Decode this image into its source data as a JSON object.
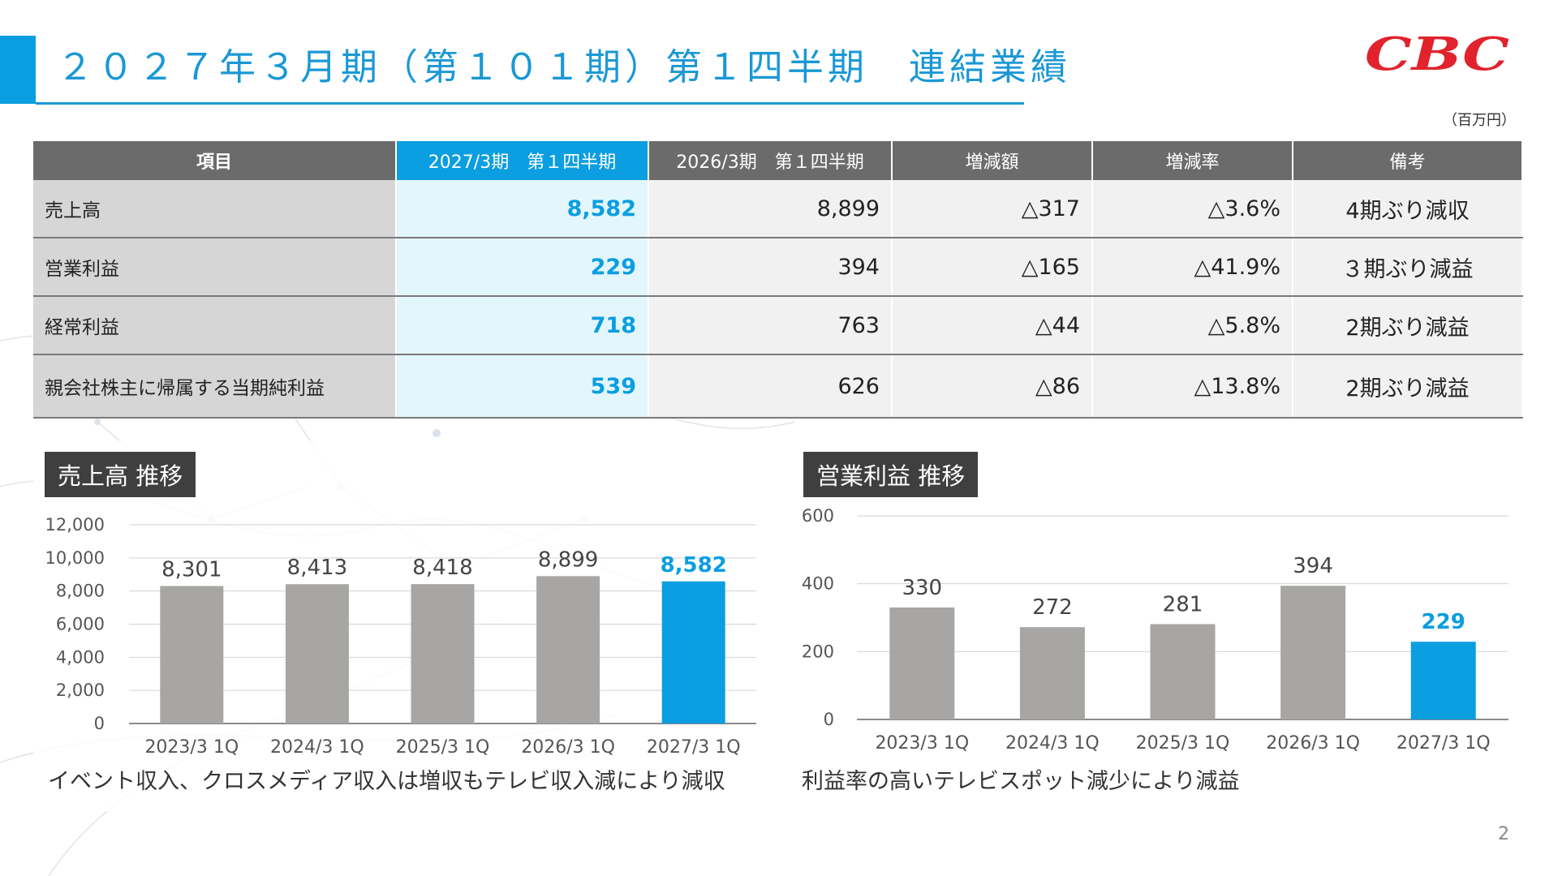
{
  "header": {
    "title": "２０２７年３月期（第１０１期）第１四半期　連結業績",
    "logo_text": "CBC",
    "unit": "（百万円）"
  },
  "colors": {
    "accent": "#0b9ee0",
    "header_gray": "#6b6b6b",
    "bar_gray": "#a8a6a4",
    "logo_red": "#e0232d"
  },
  "table": {
    "columns": [
      "項目",
      "2027/3期　第１四半期",
      "2026/3期　第１四半期",
      "増減額",
      "増減率",
      "備考"
    ],
    "rows": [
      {
        "item": "売上高",
        "current": "8,582",
        "previous": "8,899",
        "change": "△317",
        "rate": "△3.6%",
        "note": "4期ぶり減収"
      },
      {
        "item": "営業利益",
        "current": "229",
        "previous": "394",
        "change": "△165",
        "rate": "△41.9%",
        "note": "３期ぶり減益"
      },
      {
        "item": "経常利益",
        "current": "718",
        "previous": "763",
        "change": "△44",
        "rate": "△5.8%",
        "note": "2期ぶり減益"
      },
      {
        "item": "親会社株主に帰属する当期純利益",
        "current": "539",
        "previous": "626",
        "change": "△86",
        "rate": "△13.8%",
        "note": "2期ぶり減益"
      }
    ]
  },
  "chart_data": [
    {
      "type": "bar",
      "title": "売上高 推移",
      "categories": [
        "2023/3 1Q",
        "2024/3 1Q",
        "2025/3 1Q",
        "2026/3 1Q",
        "2027/3 1Q"
      ],
      "values": [
        8301,
        8413,
        8418,
        8899,
        8582
      ],
      "value_labels": [
        "8,301",
        "8,413",
        "8,418",
        "8,899",
        "8,582"
      ],
      "highlight_index": 4,
      "ylim": [
        0,
        12000
      ],
      "yticks": [
        0,
        2000,
        4000,
        6000,
        8000,
        10000,
        12000
      ],
      "ytick_labels": [
        "0",
        "2,000",
        "4,000",
        "6,000",
        "8,000",
        "10,000",
        "12,000"
      ],
      "grid": true,
      "caption": "イベント収入、クロスメディア収入は増収もテレビ収入減により減収"
    },
    {
      "type": "bar",
      "title": "営業利益 推移",
      "categories": [
        "2023/3 1Q",
        "2024/3 1Q",
        "2025/3 1Q",
        "2026/3 1Q",
        "2027/3 1Q"
      ],
      "values": [
        330,
        272,
        281,
        394,
        229
      ],
      "value_labels": [
        "330",
        "272",
        "281",
        "394",
        "229"
      ],
      "highlight_index": 4,
      "ylim": [
        0,
        600
      ],
      "yticks": [
        0,
        200,
        400,
        600
      ],
      "ytick_labels": [
        "0",
        "200",
        "400",
        "600"
      ],
      "grid": true,
      "caption": "利益率の高いテレビスポット減少により減益"
    }
  ],
  "page_number": "2"
}
